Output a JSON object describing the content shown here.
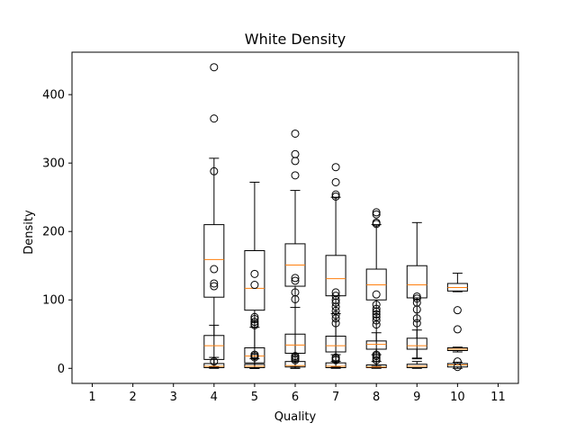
{
  "chart_data": {
    "type": "box",
    "title": "White Density",
    "xlabel": "Quality",
    "ylabel": "Density",
    "categories": [
      "1",
      "2",
      "3",
      "4",
      "5",
      "6",
      "7",
      "8",
      "9",
      "10",
      "11"
    ],
    "xlim": [
      0.5,
      11.5
    ],
    "ylim": [
      -22,
      462
    ],
    "yticks": [
      0,
      100,
      200,
      300,
      400
    ],
    "grid": false,
    "colors": {
      "box": "#000000",
      "median": "#ff7f0e",
      "outlier": "#000000"
    },
    "series": [
      {
        "boxes": [
          {
            "x": 4,
            "whislo": 2,
            "q1": 104,
            "med": 159,
            "q3": 210,
            "whishi": 307,
            "fliers": [
              288,
              365,
              440,
              145,
              124,
              120
            ]
          },
          {
            "x": 5,
            "whislo": 0,
            "q1": 85,
            "med": 117,
            "q3": 172,
            "whishi": 272,
            "fliers": [
              138,
              122,
              75,
              72,
              68,
              65,
              63
            ]
          },
          {
            "x": 6,
            "whislo": 2,
            "q1": 120,
            "med": 151,
            "q3": 182,
            "whishi": 260,
            "fliers": [
              343,
              313,
              303,
              282,
              132,
              128,
              111,
              101
            ]
          },
          {
            "x": 7,
            "whislo": 10,
            "q1": 106,
            "med": 131,
            "q3": 165,
            "whishi": 250,
            "fliers": [
              294,
              272,
              254,
              251,
              111,
              106,
              100,
              96,
              90,
              84,
              78,
              73,
              66
            ]
          },
          {
            "x": 8,
            "whislo": 20,
            "q1": 100,
            "med": 122,
            "q3": 145,
            "whishi": 210,
            "fliers": [
              228,
              225,
              213,
              211,
              108,
              93,
              87,
              83,
              79,
              75,
              70,
              64
            ]
          },
          {
            "x": 9,
            "whislo": 14,
            "q1": 103,
            "med": 122,
            "q3": 150,
            "whishi": 213,
            "fliers": [
              105,
              102,
              96,
              86,
              73,
              66
            ]
          },
          {
            "x": 10,
            "whislo": 112,
            "q1": 113,
            "med": 118,
            "q3": 124,
            "whishi": 139,
            "fliers": [
              85,
              57
            ]
          }
        ]
      },
      {
        "boxes": [
          {
            "x": 4,
            "whislo": 2,
            "q1": 13,
            "med": 33,
            "q3": 48,
            "whishi": 63,
            "fliers": [
              10
            ]
          },
          {
            "x": 5,
            "whislo": 0,
            "q1": 8,
            "med": 18,
            "q3": 30,
            "whishi": 60,
            "fliers": []
          },
          {
            "x": 6,
            "whislo": 0,
            "q1": 22,
            "med": 34,
            "q3": 50,
            "whishi": 89,
            "fliers": []
          },
          {
            "x": 7,
            "whislo": 2,
            "q1": 24,
            "med": 33,
            "q3": 47,
            "whishi": 80,
            "fliers": []
          },
          {
            "x": 8,
            "whislo": 3,
            "q1": 28,
            "med": 35,
            "q3": 40,
            "whishi": 52,
            "fliers": [
              20,
              18,
              15,
              12
            ]
          },
          {
            "x": 9,
            "whislo": 15,
            "q1": 28,
            "med": 33,
            "q3": 44,
            "whishi": 56,
            "fliers": []
          },
          {
            "x": 10,
            "whislo": 24,
            "q1": 26,
            "med": 28,
            "q3": 30,
            "whishi": 31,
            "fliers": [
              10
            ]
          }
        ]
      },
      {
        "boxes": [
          {
            "x": 4,
            "whislo": 0,
            "q1": 1,
            "med": 3,
            "q3": 7,
            "whishi": 16,
            "fliers": []
          },
          {
            "x": 5,
            "whislo": 0,
            "q1": 1,
            "med": 3,
            "q3": 6,
            "whishi": 14,
            "fliers": [
              20,
              18,
              16
            ]
          },
          {
            "x": 6,
            "whislo": 0,
            "q1": 2,
            "med": 4,
            "q3": 10,
            "whishi": 22,
            "fliers": [
              12,
              14,
              16,
              18
            ]
          },
          {
            "x": 7,
            "whislo": 0,
            "q1": 1,
            "med": 3,
            "q3": 8,
            "whishi": 20,
            "fliers": [
              16,
              14,
              12
            ]
          },
          {
            "x": 8,
            "whislo": 0,
            "q1": 1,
            "med": 2,
            "q3": 5,
            "whishi": 10,
            "fliers": []
          },
          {
            "x": 9,
            "whislo": 0,
            "q1": 1,
            "med": 3,
            "q3": 6,
            "whishi": 10,
            "fliers": []
          },
          {
            "x": 10,
            "whislo": 0,
            "q1": 2,
            "med": 5,
            "q3": 7,
            "whishi": 9,
            "fliers": [
              2
            ]
          }
        ]
      }
    ]
  }
}
